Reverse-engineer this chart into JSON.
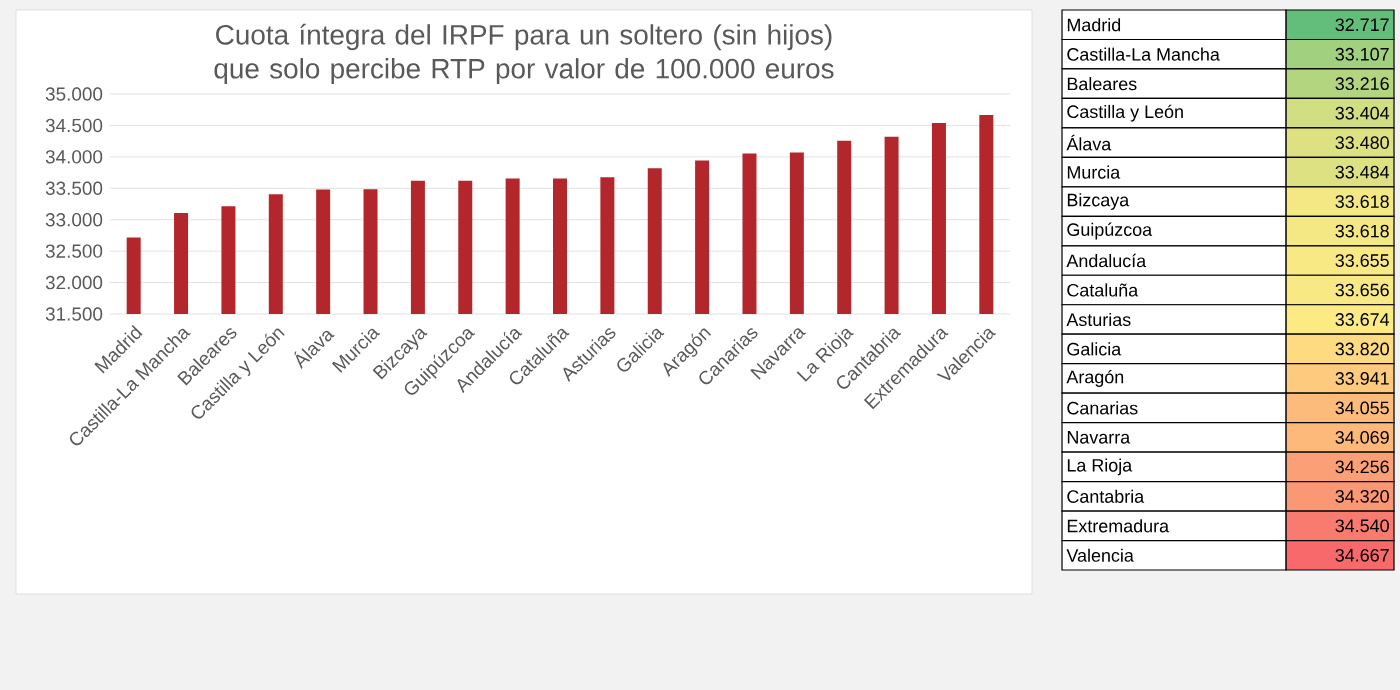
{
  "chart_data": [
    {
      "type": "bar",
      "title": "Cuota íntegra del IRPF para un soltero (sin hijos) que solo percibe RTP por valor de 100.000 euros",
      "categories": [
        "Madrid",
        "Castilla-La Mancha",
        "Baleares",
        "Castilla y León",
        "Álava",
        "Murcia",
        "Bizcaya",
        "Guipúzcoa",
        "Andalucía",
        "Cataluña",
        "Asturias",
        "Galicia",
        "Aragón",
        "Canarias",
        "Navarra",
        "La Rioja",
        "Cantabria",
        "Extremadura",
        "Valencia"
      ],
      "values": [
        32717,
        33107,
        33216,
        33404,
        33480,
        33484,
        33618,
        33618,
        33655,
        33656,
        33674,
        33820,
        33941,
        34055,
        34069,
        34256,
        34320,
        34540,
        34667
      ],
      "color": "#b3262b",
      "ylim": [
        31500,
        35000
      ],
      "yticks": [
        {
          "value": 31500,
          "label": "31.500"
        },
        {
          "value": 32000,
          "label": "32.000"
        },
        {
          "value": 32500,
          "label": "32.500"
        },
        {
          "value": 33000,
          "label": "33.000"
        },
        {
          "value": 33500,
          "label": "33.500"
        },
        {
          "value": 34000,
          "label": "34.000"
        },
        {
          "value": 34500,
          "label": "34.500"
        },
        {
          "value": 35000,
          "label": "35.000"
        }
      ],
      "grid": "y"
    },
    {
      "type": "heatmap",
      "categories": [
        null
      ],
      "y_categories": [
        "Madrid",
        "Castilla-La Mancha",
        "Baleares",
        "Castilla y León",
        "Álava",
        "Murcia",
        "Bizcaya",
        "Guipúzcoa",
        "Andalucía",
        "Cataluña",
        "Asturias",
        "Galicia",
        "Aragón",
        "Canarias",
        "Navarra",
        "La Rioja",
        "Cantabria",
        "Extremadura",
        "Valencia"
      ],
      "cells": [
        [
          32717
        ],
        [
          33107
        ],
        [
          33216
        ],
        [
          33404
        ],
        [
          33480
        ],
        [
          33484
        ],
        [
          33618
        ],
        [
          33618
        ],
        [
          33655
        ],
        [
          33656
        ],
        [
          33674
        ],
        [
          33820
        ],
        [
          33941
        ],
        [
          34055
        ],
        [
          34069
        ],
        [
          34256
        ],
        [
          34320
        ],
        [
          34540
        ],
        [
          34667
        ]
      ],
      "cell_labels": [
        [
          "32.717"
        ],
        [
          "33.107"
        ],
        [
          "33.216"
        ],
        [
          "33.404"
        ],
        [
          "33.480"
        ],
        [
          "33.484"
        ],
        [
          "33.618"
        ],
        [
          "33.618"
        ],
        [
          "33.655"
        ],
        [
          "33.656"
        ],
        [
          "33.674"
        ],
        [
          "33.820"
        ],
        [
          "33.941"
        ],
        [
          "34.055"
        ],
        [
          "34.069"
        ],
        [
          "34.256"
        ],
        [
          "34.320"
        ],
        [
          "34.540"
        ],
        [
          "34.667"
        ]
      ]
    }
  ]
}
